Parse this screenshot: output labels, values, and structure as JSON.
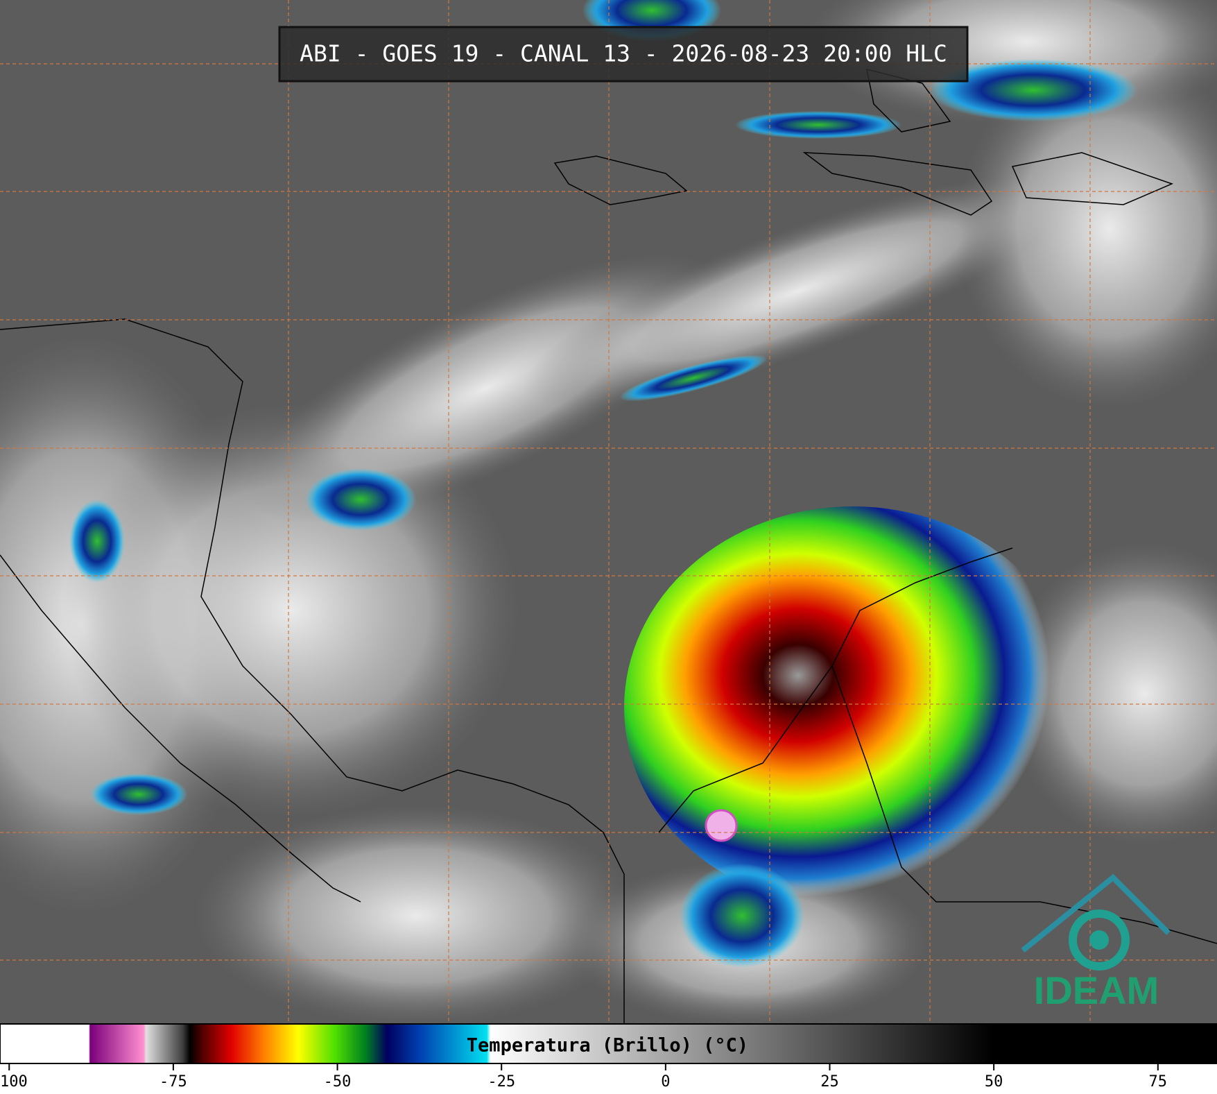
{
  "header": {
    "title": "ABI - GOES 19 - CANAL 13 - 2026-08-23 20:00 HLC"
  },
  "colorbar": {
    "label": "Temperatura (Brillo) (°C)",
    "xlim": [
      -101.4,
      84
    ],
    "xticks": [
      -100,
      -75,
      -50,
      -25,
      0,
      25,
      50,
      75
    ]
  },
  "logo": {
    "text": "IDEAM"
  }
}
